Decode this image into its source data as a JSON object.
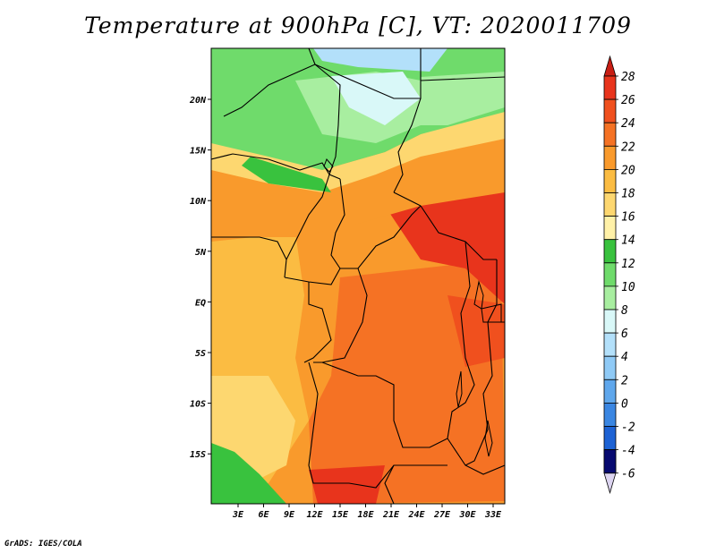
{
  "title": "Temperature at 900hPa [C], VT: 2020011709",
  "credit": "GrADS: IGES/COLA",
  "map": {
    "lon_labels": [
      "3E",
      "6E",
      "9E",
      "12E",
      "15E",
      "18E",
      "21E",
      "24E",
      "27E",
      "30E",
      "33E"
    ],
    "lat_labels": [
      "20N",
      "15N",
      "10N",
      "5N",
      "EQ",
      "5S",
      "10S",
      "15S"
    ]
  },
  "colorbar": {
    "levels": [
      "28",
      "26",
      "24",
      "22",
      "20",
      "18",
      "16",
      "14",
      "12",
      "10",
      "8",
      "6",
      "4",
      "2",
      "0",
      "-2",
      "-4",
      "-6"
    ],
    "colors": [
      "#e8341c",
      "#f0501e",
      "#f57224",
      "#f99a2c",
      "#fbbc42",
      "#fdd770",
      "#fff1a8",
      "#39c23e",
      "#6fdb6b",
      "#a8eea0",
      "#d9f8f8",
      "#b3e0fa",
      "#8fcaf6",
      "#5fa7ec",
      "#3a86e2",
      "#1d62d4",
      "#0b3eb4",
      "#070a70"
    ],
    "top_arrow_color": "#c81e14",
    "bottom_arrow_color": "#dcd4f0"
  }
}
